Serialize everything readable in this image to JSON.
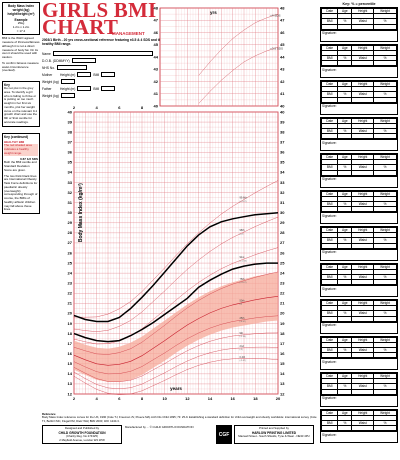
{
  "header": {
    "title_line1": "GIRLS BMI",
    "title_line2": "CHART",
    "subtitle": "MANAGEMENT",
    "description": "2003/1 Birth - 20 yrs cross-sectional reference featuring ±3.5 & 4 SDS and the healthy BMI range."
  },
  "left_column": {
    "bmi_definition": "Body Mass Index weight (kg) height/height (m²)",
    "example_label": "Example",
    "example_lines": [
      "25kg",
      "1.2m x 1.2m",
      "= 17.4"
    ],
    "who_note": "BMI is the WHO agreed measure of thinness/fatness although it is not a direct measure of body fat. On its own it should be used with caution.",
    "confirm_note": "To confirm fatness measure waist circumference (overleaf).",
    "key_title": "Key",
    "key_text": "Do not plot in the grey area. To identify a girl who is failing to thrive or is putting on too much weight in her first six months, plot her weight curve on the relevant 0-1 growth chart and use the 9th or 91st centile for accurate readings.",
    "healthy_title": "Key (continued)",
    "healthy_bmi_label": "HEALTHY BMI",
    "healthy_bmi_text": "The red shaded area indicates a healthy weight range.",
    "sds_label": "0.67 1/2 SDS",
    "sds_text": "Both the BMI centile and Standard Deviation Score are given.",
    "black_lines_text": "The two thick black lines are International Obesity Task Force definitions for paediatric obesity (overweight) corresponding through of course, the BMIs of healthy athletic children may fall above these lines."
  },
  "form": {
    "name_label": "Name",
    "dob_label": "D.O.B. (DDMMYY)",
    "nhs_label": "NHS No.",
    "mother_label": "Mother",
    "father_label": "Father",
    "weight_label": "Weight (kg)",
    "height_label": "Height (m)",
    "bmi_label": "BMI"
  },
  "right_panel": {
    "key_title": "Key: % = percentile",
    "columns": [
      "Date",
      "Age",
      "Height",
      "Weight"
    ],
    "sub_columns": [
      "BMI",
      "%",
      "Waist",
      "%"
    ],
    "signature_label": "Signature:",
    "record_count": 12
  },
  "footer": {
    "reference_label": "Reference",
    "reference_text": "Body Mass Index reference curves for the UK, 1990 (Cole TJ, Freeman JV, Preece MA) Arch Dis Child 1995; 73: 25-9. Establishing a standard definition for child overweight and obesity worldwide: international survey (Cole TJ, Bellizzi MC, Flegal KM, Dietz WH) BMJ 2000; 320: 1240-3.",
    "designed_label": "Designed and Published by",
    "designed_org": "CHILD GROWTH FOUNDATION",
    "designed_charity": "(Charity Reg. No 274325)",
    "designed_address": "2 Mayfield Avenue, London W4 1PW",
    "printed_label": "Printed and Supplied by",
    "printed_org": "HARLOW PRINTING LIMITED",
    "printed_address": "Maxwell Street - South Shields, Tyne & Wear - NE33 4PU",
    "copyright": "Manufactured by ... © CHILD GROWTH FOUNDATION",
    "logo_text": "CGF",
    "chart_code": "Girls: 1990"
  },
  "chart_data": [
    {
      "type": "line",
      "title": "",
      "xlabel": "years",
      "ylabel": "Body Mass Index (kg/m²)",
      "x_ticks": [
        2,
        4,
        6,
        8,
        10,
        12,
        14,
        16,
        18,
        20
      ],
      "y_ticks_left": [
        12,
        13,
        14,
        15,
        16,
        17,
        18,
        19,
        20,
        21,
        22,
        23,
        24,
        25,
        26,
        27,
        28,
        29,
        30,
        31,
        32,
        33,
        34,
        35,
        36,
        37,
        38,
        39,
        40
      ],
      "y_ticks_right": [
        12,
        13,
        14,
        15,
        16,
        17,
        18,
        19,
        20,
        21,
        22,
        23,
        24,
        25,
        26,
        27,
        28,
        29,
        30,
        31,
        32,
        33,
        34,
        35,
        36,
        37,
        38,
        39,
        40
      ],
      "xlim": [
        2,
        20
      ],
      "ylim": [
        12,
        40
      ],
      "grid": true,
      "healthy_band": {
        "lower": [
          14.4,
          13.9,
          13.4,
          13.2,
          13.2,
          13.4,
          13.9,
          14.6,
          15.3,
          16.1,
          16.8,
          17.4,
          17.9,
          18.3,
          18.6,
          18.8,
          19.0,
          19.2,
          19.3
        ],
        "upper": [
          17.3,
          16.9,
          16.6,
          16.5,
          16.7,
          17.1,
          17.7,
          18.5,
          19.3,
          20.1,
          20.9,
          21.6,
          22.2,
          22.7,
          23.1,
          23.4,
          23.7,
          23.9,
          24.1
        ]
      },
      "x": [
        2,
        3,
        4,
        5,
        6,
        7,
        8,
        9,
        10,
        11,
        12,
        13,
        14,
        15,
        16,
        17,
        18,
        19,
        20
      ],
      "series": [
        {
          "name": "IOTF obese",
          "color": "#000000",
          "values": [
            19.8,
            19.4,
            19.2,
            19.2,
            19.6,
            20.5,
            21.6,
            22.8,
            24.1,
            25.4,
            26.7,
            27.8,
            28.6,
            29.1,
            29.4,
            29.6,
            29.8,
            29.9,
            30.0
          ]
        },
        {
          "name": "IOTF overweight",
          "color": "#000000",
          "values": [
            18.0,
            17.6,
            17.3,
            17.2,
            17.3,
            17.8,
            18.4,
            19.1,
            19.9,
            20.7,
            21.5,
            22.6,
            23.3,
            23.9,
            24.4,
            24.7,
            24.9,
            25.0,
            25.0
          ]
        }
      ],
      "centile_labels": [
        "99.6th",
        "98th",
        "91st",
        "75th",
        "50th",
        "25th",
        "9th",
        "2nd",
        "0.4th"
      ],
      "sds_labels": [
        "+2.67",
        "+2",
        "+1.33",
        "+0.67",
        "0",
        "-0.67",
        "-1.33",
        "-2",
        "-2.67"
      ],
      "upper_labels": [
        "+4 SDS",
        "+3.5 SDS"
      ]
    },
    {
      "type": "line",
      "title": "",
      "xlabel": "yrs",
      "x_ticks": [
        2,
        4,
        6,
        8
      ],
      "y_ticks": [
        40,
        41,
        42,
        43,
        44,
        45,
        46,
        47,
        48
      ],
      "xlim": [
        2,
        20
      ],
      "ylim": [
        40,
        48
      ]
    }
  ]
}
